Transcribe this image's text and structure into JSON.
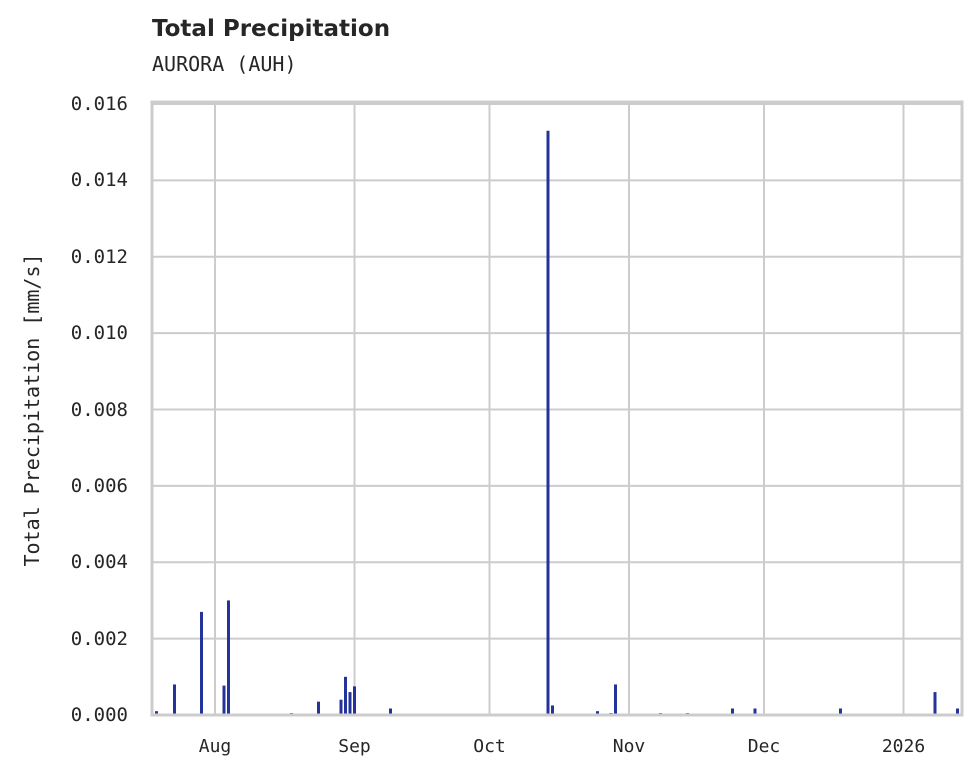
{
  "chart": {
    "title": "Total Precipitation",
    "subtitle": "AURORA (AUH)",
    "ylabel": "Total Precipitation [mm/s]",
    "yticks": [
      "0.000",
      "0.002",
      "0.004",
      "0.006",
      "0.008",
      "0.010",
      "0.012",
      "0.014",
      "0.016"
    ],
    "xticks": [
      "Aug",
      "Sep",
      "Oct",
      "Nov",
      "Dec",
      "2026"
    ],
    "bar_color": "#24339a",
    "grid_color": "#cccccc"
  },
  "chart_data": {
    "type": "bar",
    "title": "Total Precipitation",
    "subtitle": "AURORA (AUH)",
    "xlabel": "",
    "ylabel": "Total Precipitation [mm/s]",
    "ylim": [
      0,
      0.016
    ],
    "xlim": [
      "2025-07-18",
      "2026-01-14"
    ],
    "grid": true,
    "x_tick_labels": [
      "Aug",
      "Sep",
      "Oct",
      "Nov",
      "Dec",
      "2026"
    ],
    "y_tick_labels": [
      "0.000",
      "0.002",
      "0.004",
      "0.006",
      "0.008",
      "0.010",
      "0.012",
      "0.014",
      "0.016"
    ],
    "series": [
      {
        "name": "Total Precipitation",
        "color": "#24339a",
        "x": [
          "2025-07-19",
          "2025-07-23",
          "2025-07-29",
          "2025-08-03",
          "2025-08-04",
          "2025-08-18",
          "2025-08-24",
          "2025-08-24",
          "2025-08-29",
          "2025-08-30",
          "2025-08-31",
          "2025-08-31",
          "2025-09-01",
          "2025-09-09",
          "2025-10-14",
          "2025-10-15",
          "2025-10-25",
          "2025-10-28",
          "2025-10-29",
          "2025-11-08",
          "2025-11-14",
          "2025-11-24",
          "2025-11-29",
          "2025-12-18",
          "2026-01-02",
          "2026-01-08",
          "2026-01-13"
        ],
        "values": [
          0.0001,
          0.0008,
          0.0027,
          0.00077,
          0.003,
          5e-05,
          0.00035,
          0.0003,
          0.0004,
          0.001,
          0.0006,
          0.0002,
          0.00075,
          0.00017,
          0.0153,
          0.00025,
          0.0001,
          5e-05,
          0.0008,
          5e-05,
          5e-05,
          0.00017,
          0.00017,
          0.00017,
          3e-05,
          0.0006,
          0.00017
        ]
      }
    ]
  }
}
